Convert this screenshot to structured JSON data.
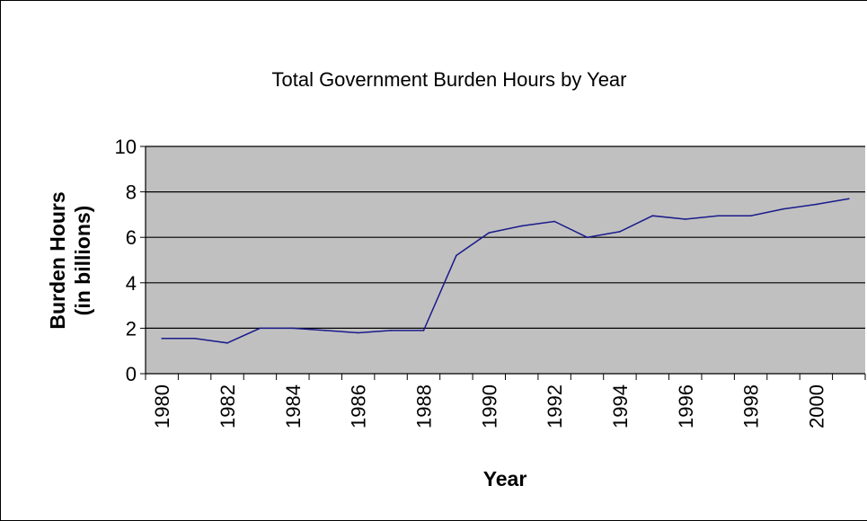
{
  "chart_data": {
    "type": "line",
    "title": "Total Government Burden Hours by Year",
    "ylabel_line1": "Burden Hours",
    "ylabel_line2": "(in billions)",
    "xlabel": "Year",
    "ylim": [
      0,
      10
    ],
    "y_ticks": [
      0,
      2,
      4,
      6,
      8,
      10
    ],
    "x_tick_labels": [
      "1980",
      "1982",
      "1984",
      "1986",
      "1988",
      "1990",
      "1992",
      "1994",
      "1996",
      "1998",
      "2000"
    ],
    "grid": "horizontal",
    "plot_background": "#c0c0c0",
    "series": [
      {
        "color": "#1a1a8c",
        "x": [
          1980,
          1981,
          1982,
          1983,
          1984,
          1985,
          1986,
          1987,
          1988,
          1989,
          1990,
          1991,
          1992,
          1993,
          1994,
          1995,
          1996,
          1997,
          1998,
          1999,
          2000,
          2001
        ],
        "values": [
          1.55,
          1.55,
          1.35,
          2.0,
          2.0,
          1.9,
          1.8,
          1.9,
          1.9,
          5.2,
          6.2,
          6.5,
          6.7,
          6.0,
          6.25,
          6.95,
          6.8,
          6.95,
          6.95,
          7.25,
          7.45,
          7.7
        ]
      }
    ]
  }
}
